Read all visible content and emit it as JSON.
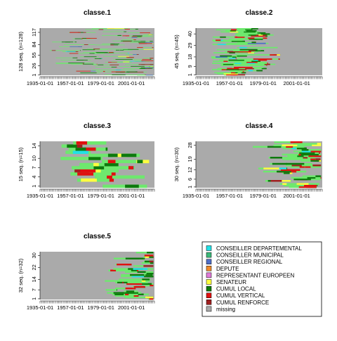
{
  "legend": [
    {
      "label": "CONSEILLER DEPARTEMENTAL",
      "color": "#22e0e6"
    },
    {
      "label": "CONSEILLER MUNICIPAL",
      "color": "#3cb878"
    },
    {
      "label": "CONSEILLER REGIONAL",
      "color": "#4f6fc8"
    },
    {
      "label": "DEPUTE",
      "color": "#f08a2a"
    },
    {
      "label": "REPRESENTANT EUROPEEN",
      "color": "#e07ad8"
    },
    {
      "label": "SENATEUR",
      "color": "#ffff40"
    },
    {
      "label": "CUMUL LOCAL",
      "color": "#0d7a0d"
    },
    {
      "label": "CUMUL VERTICAL",
      "color": "#e01010"
    },
    {
      "label": "CUMUL RENFORCE",
      "color": "#a02020"
    },
    {
      "label": "missing",
      "color": "#aaaaaa"
    }
  ],
  "chart_data": [
    {
      "type": "sequence_index_plot",
      "title": "classe.1",
      "ylabel": "128 seq. (n=128)",
      "x_ticks": [
        "1935-01-01",
        "1957-01-01",
        "1979-01-01",
        "2001-01-01"
      ],
      "y_ticks": [
        "1",
        "26",
        "55",
        "84",
        "117"
      ],
      "n_sequences": 128,
      "profile": "scattered"
    },
    {
      "type": "sequence_index_plot",
      "title": "classe.2",
      "ylabel": "45 seq. (n=45)",
      "x_ticks": [
        "1935-01-01",
        "1957-01-01",
        "1979-01-01",
        "2001-01-01"
      ],
      "y_ticks": [
        "1",
        "9",
        "18",
        "29",
        "40"
      ],
      "n_sequences": 45,
      "profile": "early"
    },
    {
      "type": "sequence_index_plot",
      "title": "classe.3",
      "ylabel": "15 seq. (n=15)",
      "x_ticks": [
        "1935-01-01",
        "1957-01-01",
        "1979-01-01",
        "2001-01-01"
      ],
      "y_ticks": [
        "1",
        "4",
        "7",
        "10",
        "14"
      ],
      "n_sequences": 15,
      "profile": "middle"
    },
    {
      "type": "sequence_index_plot",
      "title": "classe.4",
      "ylabel": "30 seq. (n=30)",
      "x_ticks": [
        "1935-01-01",
        "1957-01-01",
        "1979-01-01",
        "2001-01-01"
      ],
      "y_ticks": [
        "1",
        "6",
        "12",
        "19",
        "28"
      ],
      "n_sequences": 30,
      "profile": "late"
    },
    {
      "type": "sequence_index_plot",
      "title": "classe.5",
      "ylabel": "32 seq. (n=32)",
      "x_ticks": [
        "1935-01-01",
        "1957-01-01",
        "1979-01-01",
        "2001-01-01"
      ],
      "y_ticks": [
        "1",
        "7",
        "14",
        "22",
        "30"
      ],
      "n_sequences": 32,
      "profile": "recent"
    }
  ]
}
